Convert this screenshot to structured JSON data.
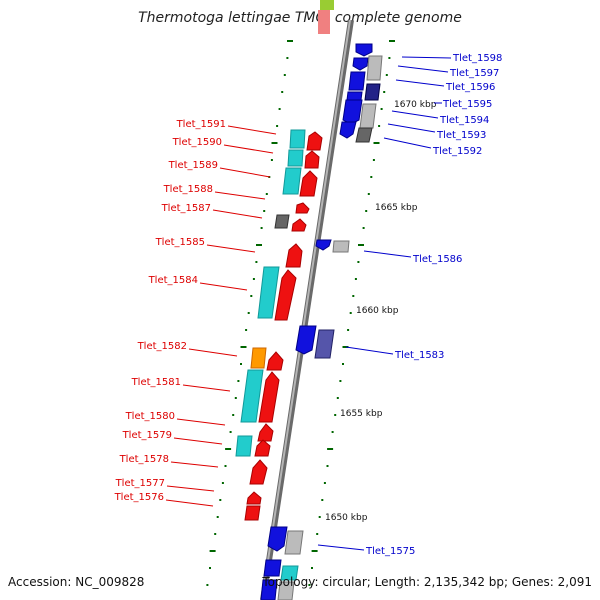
{
  "title": "Thermotoga lettingae TMO, complete genome",
  "footer": {
    "accession": "Accession: NC_009828",
    "topology": "Topology: circular; Length: 2,135,342 bp; Genes: 2,091"
  },
  "colors": {
    "backbone": "#808080",
    "left_label": "#dd0000",
    "right_label": "#0000cc",
    "tick": "#006600",
    "red_gene": "#ee1111",
    "blue_gene": "#1111dd",
    "cyan_gene": "#22cccc",
    "orange_gene": "#ff9900",
    "gray_gene": "#bbbbbb",
    "dark_gray_gene": "#666666",
    "navy_gene": "#222288",
    "slate_gene": "#5555aa"
  },
  "scale": [
    "1670 kbp",
    "1665 kbp",
    "1660 kbp",
    "1655 kbp",
    "1650 kbp"
  ],
  "left_labels": [
    "Tlet_1591",
    "Tlet_1590",
    "Tlet_1589",
    "Tlet_1588",
    "Tlet_1587",
    "Tlet_1585",
    "Tlet_1584",
    "Tlet_1582",
    "Tlet_1581",
    "Tlet_1580",
    "Tlet_1579",
    "Tlet_1578",
    "Tlet_1577",
    "Tlet_1576"
  ],
  "right_labels": [
    "Tlet_1598",
    "Tlet_1597",
    "Tlet_1596",
    "Tlet_1595",
    "Tlet_1594",
    "Tlet_1593",
    "Tlet_1592",
    "Tlet_1586",
    "Tlet_1583",
    "Tlet_1575"
  ]
}
